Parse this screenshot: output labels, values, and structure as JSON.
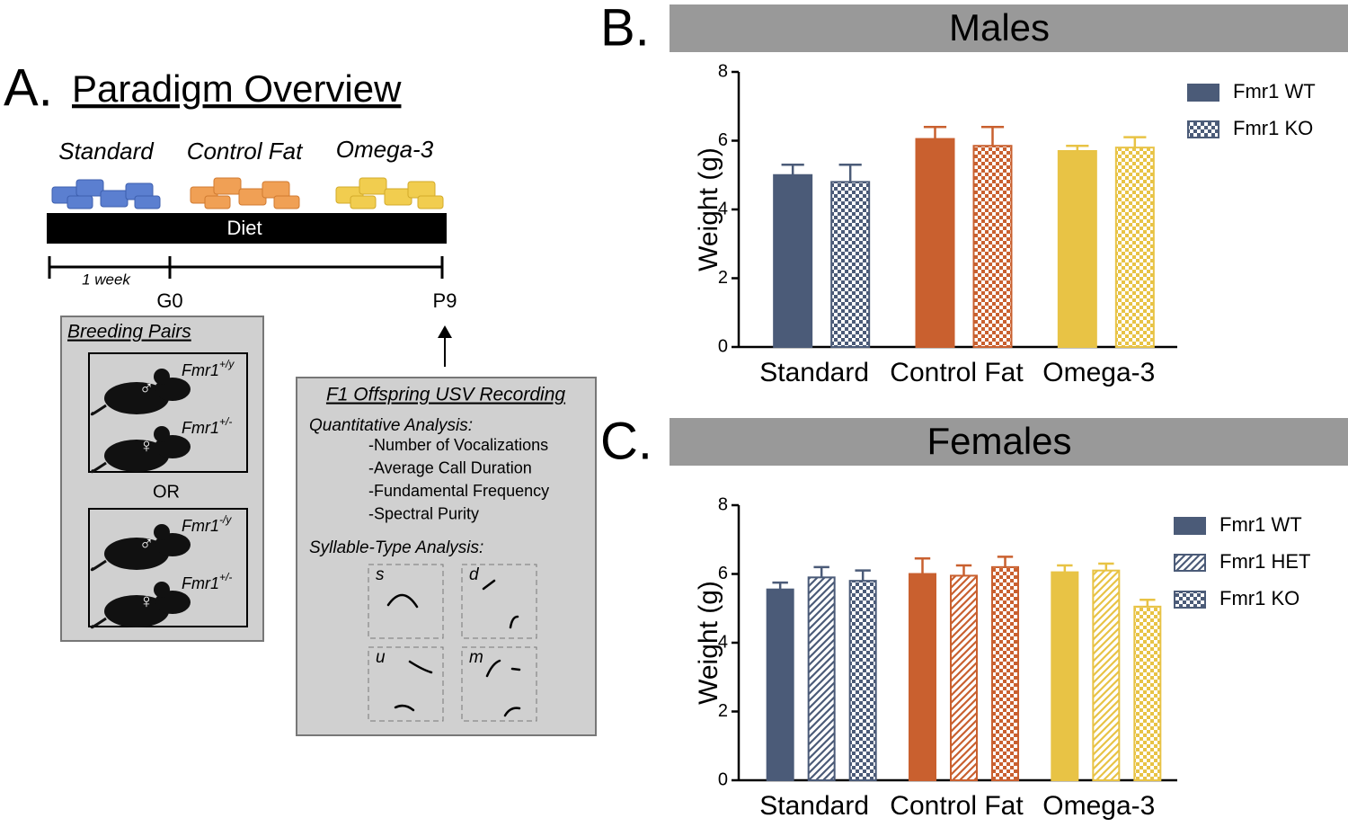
{
  "panel_a": {
    "label": "A.",
    "title": "Paradigm Overview",
    "diets": [
      "Standard",
      "Control Fat",
      "Omega-3"
    ],
    "diet_bar": "Diet",
    "timeline": {
      "interval": "1 week",
      "start": "G0",
      "end": "P9"
    },
    "breeding": {
      "title": "Breeding Pairs",
      "separator": "OR",
      "pairs": [
        [
          {
            "gene": "Fmr1",
            "genotype": "+/y",
            "sex": "♂"
          },
          {
            "gene": "Fmr1",
            "genotype": "+/-",
            "sex": "♀"
          }
        ],
        [
          {
            "gene": "Fmr1",
            "genotype": "-/y",
            "sex": "♂"
          },
          {
            "gene": "Fmr1",
            "genotype": "+/-",
            "sex": "♀"
          }
        ]
      ]
    },
    "recording": {
      "title": "F1 Offspring USV Recording",
      "quantitative_title": "Quantitative Analysis:",
      "quantitative": [
        "-Number of Vocalizations",
        "-Average Call Duration",
        "-Fundamental Frequency",
        "-Spectral Purity"
      ],
      "syllable_title": "Syllable-Type Analysis:",
      "syllables": [
        "s",
        "d",
        "u",
        "m"
      ]
    }
  },
  "chart_data": [
    {
      "type": "bar",
      "panel": "B.",
      "title": "Males",
      "y_label": "Weight (g)",
      "categories": [
        "Standard",
        "Control Fat",
        "Omega-3"
      ],
      "category_colors": [
        "#4b5b78",
        "#c9602f",
        "#e8c345"
      ],
      "series": [
        {
          "name": "Fmr1 WT",
          "pattern": "solid",
          "values": [
            5.0,
            6.05,
            5.7
          ],
          "errors": [
            0.3,
            0.35,
            0.15
          ]
        },
        {
          "name": "Fmr1 KO",
          "pattern": "checker",
          "values": [
            4.8,
            5.85,
            5.8
          ],
          "errors": [
            0.5,
            0.55,
            0.3
          ]
        }
      ],
      "ylim": [
        0,
        8
      ],
      "yticks": [
        0,
        2,
        4,
        6,
        8
      ],
      "legend": "top-right"
    },
    {
      "type": "bar",
      "panel": "C.",
      "title": "Females",
      "y_label": "Weight (g)",
      "categories": [
        "Standard",
        "Control Fat",
        "Omega-3"
      ],
      "category_colors": [
        "#4b5b78",
        "#c9602f",
        "#e8c345"
      ],
      "series": [
        {
          "name": "Fmr1 WT",
          "pattern": "solid",
          "values": [
            5.55,
            6.0,
            6.05
          ],
          "errors": [
            0.2,
            0.45,
            0.2
          ]
        },
        {
          "name": "Fmr1 HET",
          "pattern": "hatch",
          "values": [
            5.9,
            5.95,
            6.1
          ],
          "errors": [
            0.3,
            0.3,
            0.2
          ]
        },
        {
          "name": "Fmr1 KO",
          "pattern": "checker",
          "values": [
            5.8,
            6.2,
            5.05
          ],
          "errors": [
            0.3,
            0.3,
            0.2
          ]
        }
      ],
      "ylim": [
        0,
        8
      ],
      "yticks": [
        0,
        2,
        4,
        6,
        8
      ],
      "legend": "top-right"
    }
  ]
}
